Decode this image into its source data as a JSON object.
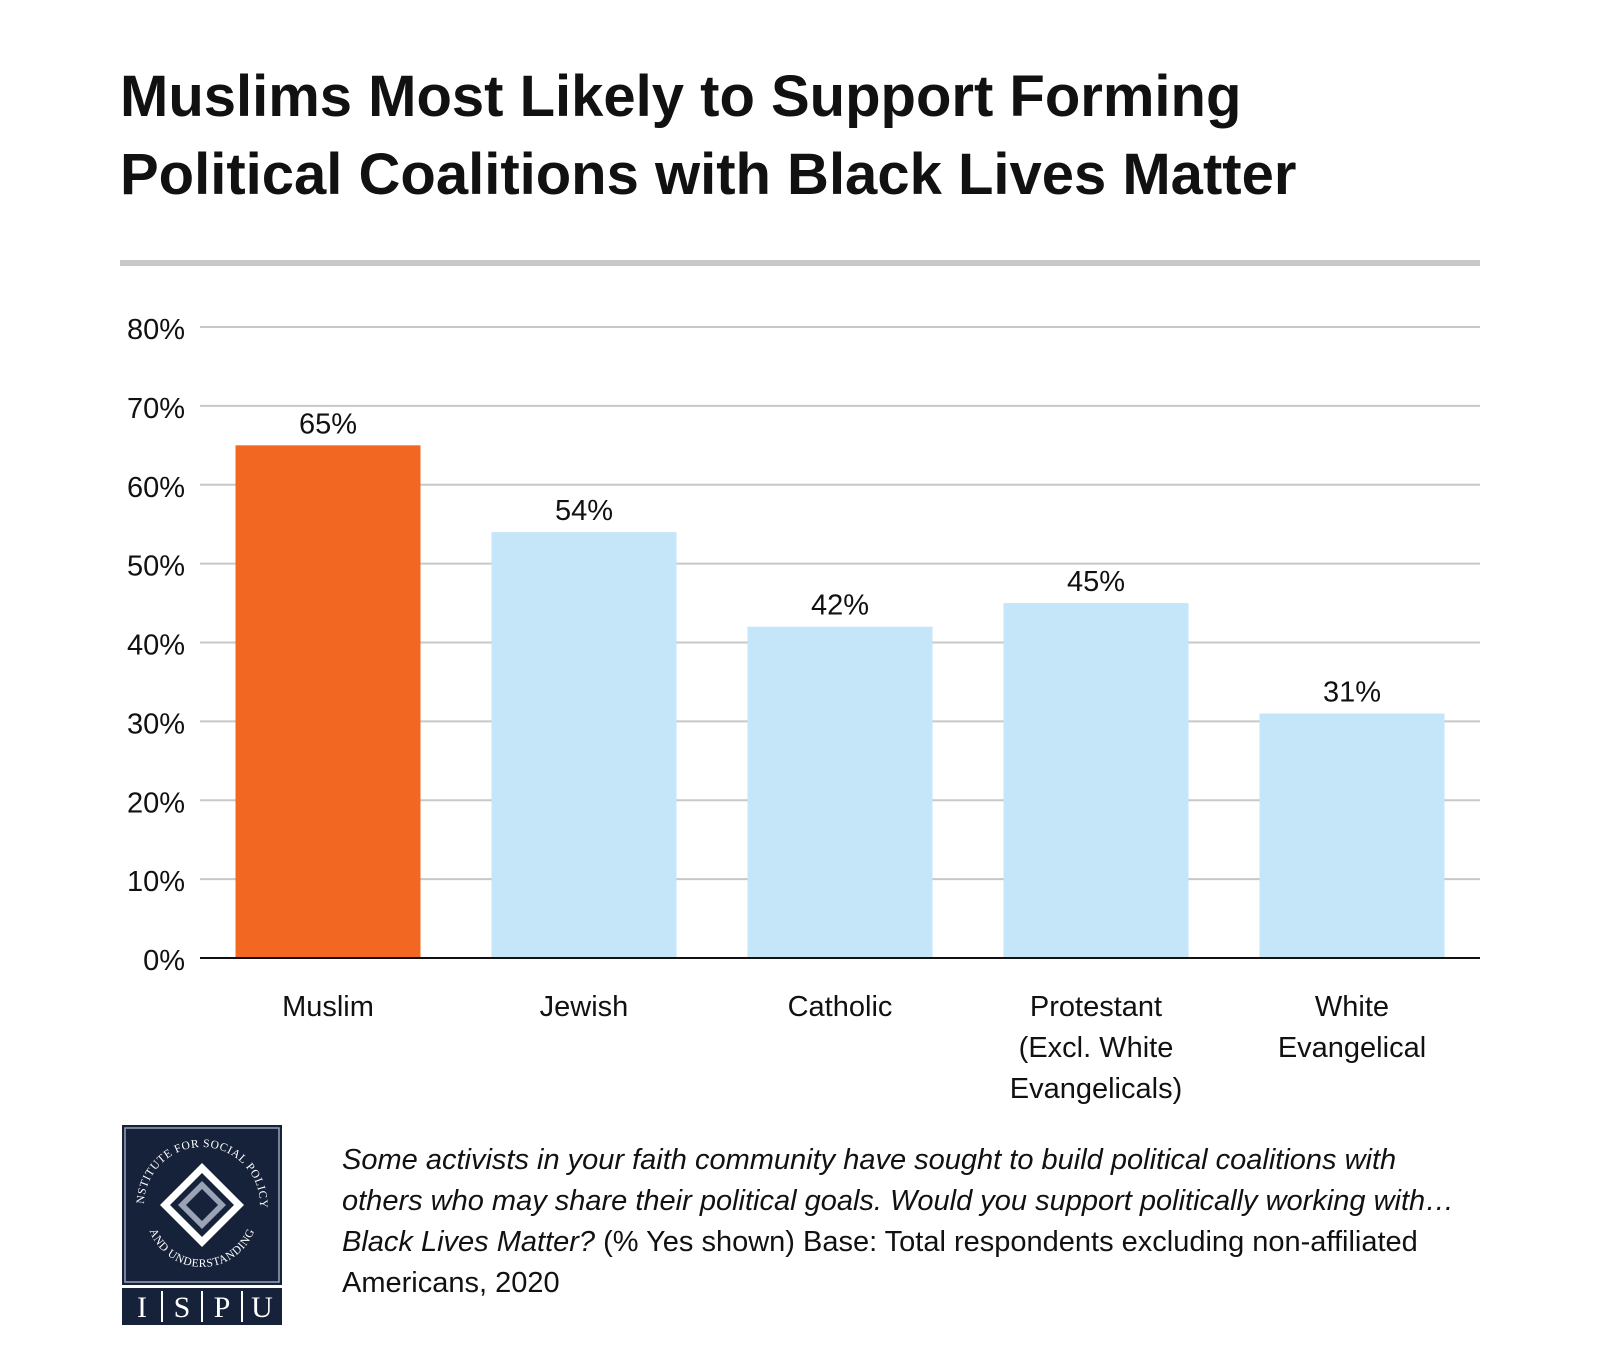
{
  "title_lines": [
    "Muslims Most Likely to Support Forming",
    "Political Coalitions with Black Lives Matter"
  ],
  "chart_data": {
    "type": "bar",
    "categories": [
      [
        "Muslim"
      ],
      [
        "Jewish"
      ],
      [
        "Catholic"
      ],
      [
        "Protestant",
        "(Excl. White",
        "Evangelicals)"
      ],
      [
        "White",
        "Evangelical"
      ]
    ],
    "values": [
      65,
      54,
      42,
      45,
      31
    ],
    "value_labels": [
      "65%",
      "54%",
      "42%",
      "45%",
      "31%"
    ],
    "highlight_index": 0,
    "yticks": [
      0,
      10,
      20,
      30,
      40,
      50,
      60,
      70,
      80
    ],
    "ytick_labels": [
      "0%",
      "10%",
      "20%",
      "30%",
      "40%",
      "50%",
      "60%",
      "70%",
      "80%"
    ],
    "ylim": [
      0,
      80
    ],
    "grid": true,
    "xlabel": "",
    "ylabel": "",
    "colors": {
      "highlight": "#f26722",
      "default": "#c5e6f8",
      "grid": "#c8c8c8",
      "axis": "#111111"
    }
  },
  "caption": {
    "question": "Some activists in your faith community have sought to build political coalitions with others who may share their political goals. Would you support politically working with…Black Lives Matter?",
    "note": " (% Yes shown) Base: Total respondents excluding non-affiliated Americans, 2020"
  },
  "logo": {
    "arc_text": "INSTITUTE FOR SOCIAL POLICY AND UNDERSTANDING",
    "letters": [
      "I",
      "S",
      "P",
      "U"
    ],
    "bg_color": "#16213a"
  }
}
